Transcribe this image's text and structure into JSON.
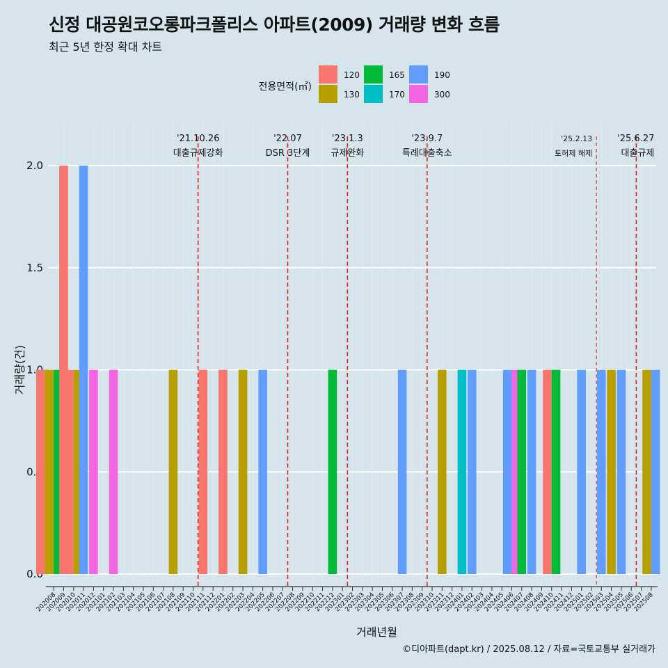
{
  "title": "신정 대공원코오롱파크폴리스 아파트(2009) 거래량 변화 흐름",
  "subtitle": "최근 5년 한정 확대 차트",
  "footer": "©디아파트(dapt.kr) / 2025.08.12 / 자료=국토교통부 실거래가",
  "chart_data": {
    "type": "bar",
    "xlabel": "거래년월",
    "ylabel": "거래량(건)",
    "ylim": [
      0,
      2.0
    ],
    "yticks": [
      "0.0",
      "0.5",
      "1.0",
      "1.5",
      "2.0"
    ],
    "grid": true,
    "legend": {
      "title": "전용면적(㎡)",
      "placement": "top",
      "items": [
        {
          "label": "120",
          "color": "#f8766d"
        },
        {
          "label": "130",
          "color": "#b79f00"
        },
        {
          "label": "165",
          "color": "#00ba38"
        },
        {
          "label": "170",
          "color": "#00bfc4"
        },
        {
          "label": "190",
          "color": "#619cff"
        },
        {
          "label": "300",
          "color": "#f564e3"
        }
      ]
    },
    "categories": [
      "202008",
      "202009",
      "202010",
      "202011",
      "202012",
      "202101",
      "202102",
      "202103",
      "202104",
      "202105",
      "202106",
      "202107",
      "202108",
      "202109",
      "202110",
      "202111",
      "202112",
      "202201",
      "202202",
      "202203",
      "202204",
      "202205",
      "202206",
      "202207",
      "202208",
      "202209",
      "202210",
      "202211",
      "202212",
      "202301",
      "202302",
      "202303",
      "202304",
      "202305",
      "202306",
      "202307",
      "202308",
      "202309",
      "202310",
      "202311",
      "202312",
      "202401",
      "202402",
      "202403",
      "202404",
      "202405",
      "202406",
      "202407",
      "202408",
      "202409",
      "202410",
      "202411",
      "202412",
      "202501",
      "202502",
      "202503",
      "202504",
      "202505",
      "202506",
      "202507",
      "202508"
    ],
    "bars": [
      {
        "month": "202008",
        "area": "120",
        "count": 1
      },
      {
        "month": "202008",
        "area": "130",
        "count": 1
      },
      {
        "month": "202008",
        "area": "165",
        "count": 1
      },
      {
        "month": "202008",
        "area": "170",
        "count": 1
      },
      {
        "month": "202009",
        "area": "120",
        "count": 2
      },
      {
        "month": "202010",
        "area": "120",
        "count": 1
      },
      {
        "month": "202010",
        "area": "130",
        "count": 1
      },
      {
        "month": "202011",
        "area": "190",
        "count": 2
      },
      {
        "month": "202012",
        "area": "300",
        "count": 1
      },
      {
        "month": "202102",
        "area": "300",
        "count": 1
      },
      {
        "month": "202108",
        "area": "130",
        "count": 1
      },
      {
        "month": "202111",
        "area": "120",
        "count": 1
      },
      {
        "month": "202201",
        "area": "120",
        "count": 1
      },
      {
        "month": "202203",
        "area": "130",
        "count": 1
      },
      {
        "month": "202205",
        "area": "190",
        "count": 1
      },
      {
        "month": "202212",
        "area": "165",
        "count": 1
      },
      {
        "month": "202307",
        "area": "190",
        "count": 1
      },
      {
        "month": "202311",
        "area": "130",
        "count": 1
      },
      {
        "month": "202401",
        "area": "170",
        "count": 1
      },
      {
        "month": "202402",
        "area": "190",
        "count": 1
      },
      {
        "month": "202406",
        "area": "190",
        "count": 1
      },
      {
        "month": "202406",
        "area": "300",
        "count": 1
      },
      {
        "month": "202407",
        "area": "165",
        "count": 1
      },
      {
        "month": "202408",
        "area": "190",
        "count": 1
      },
      {
        "month": "202410",
        "area": "120",
        "count": 1
      },
      {
        "month": "202410",
        "area": "165",
        "count": 1
      },
      {
        "month": "202501",
        "area": "190",
        "count": 1
      },
      {
        "month": "202503",
        "area": "190",
        "count": 1
      },
      {
        "month": "202504",
        "area": "130",
        "count": 1
      },
      {
        "month": "202505",
        "area": "190",
        "count": 1
      },
      {
        "month": "202508",
        "area": "130",
        "count": 1
      },
      {
        "month": "202508",
        "area": "190",
        "count": 1
      }
    ],
    "annotations": [
      {
        "date_label": "'21.10.26",
        "text": "대출규제강화",
        "x_month": "202110",
        "style": "dashed",
        "align": "center"
      },
      {
        "date_label": "'22.07",
        "text": "DSR 3단계",
        "x_month": "202207",
        "style": "dashed",
        "align": "center"
      },
      {
        "date_label": "'23.1.3",
        "text": "규제완화",
        "x_month": "202301",
        "style": "dashed",
        "align": "center"
      },
      {
        "date_label": "'23.9.7",
        "text": "특례대출축소",
        "x_month": "202309",
        "style": "dashed",
        "align": "center"
      },
      {
        "date_label": "'25.2.13",
        "text": "토허제 해제",
        "x_month": "202502",
        "style": "dotted",
        "align": "left"
      },
      {
        "date_label": "'25.6.27",
        "text": "대출규제",
        "x_month": "202506",
        "style": "dashed",
        "align": "right"
      }
    ]
  }
}
